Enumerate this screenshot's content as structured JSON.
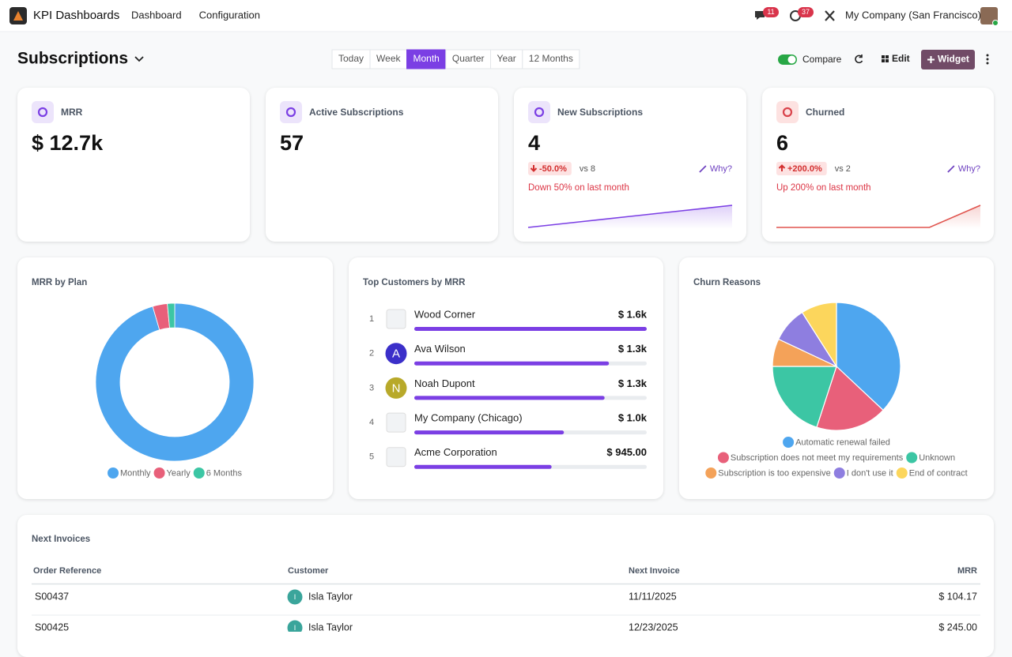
{
  "navbar": {
    "app_name": "KPI Dashboards",
    "menu": [
      "Dashboard",
      "Configuration"
    ],
    "message_count": "11",
    "activity_count": "37",
    "company": "My Company (San Francisco)"
  },
  "control_panel": {
    "title": "Subscriptions",
    "periods": [
      "Today",
      "Week",
      "Month",
      "Quarter",
      "Year",
      "12 Months"
    ],
    "active_period": 2,
    "compare": "Compare",
    "compare_on": true,
    "edit": "Edit",
    "add_widget": "Widget"
  },
  "kpis": [
    {
      "label": "MRR",
      "value": "$ 12.7k"
    },
    {
      "label": "Active Subscriptions",
      "value": "57"
    },
    {
      "label": "New Subscriptions",
      "value": "4",
      "change": "-50.0%",
      "comparison": "vs 8",
      "why": "Why?",
      "summary": "Down 50% on last month",
      "trend": [
        0,
        1,
        2,
        3,
        4
      ],
      "color": "#7b3fe4"
    },
    {
      "label": "Churned",
      "value": "6",
      "change": "+200.0%",
      "comparison": "vs 2",
      "why": "Why?",
      "summary": "Up 200% on last month",
      "trend": [
        0,
        0,
        0,
        0,
        6
      ],
      "color": "#e0554f"
    }
  ],
  "mrr_by_plan": {
    "type": "donut",
    "title": "MRR by Plan",
    "categories": [
      "Monthly",
      "Yearly",
      "6 Months"
    ],
    "values": [
      95.5,
      3,
      1.5
    ],
    "colors": [
      "#4ea6ef",
      "#e8607a",
      "#3cc6a4"
    ]
  },
  "top_customers": {
    "title": "Top Customers by MRR",
    "color": "#7b3fe4",
    "rows": [
      {
        "rank": "1",
        "name": "Wood Corner",
        "value": 1600,
        "value_label": "$ 1.6k"
      },
      {
        "rank": "2",
        "avatar": "A",
        "name": "Ava Wilson",
        "value": 1340,
        "value_label": "$ 1.3k"
      },
      {
        "rank": "3",
        "avatar": "N",
        "name": "Noah Dupont",
        "value": 1310,
        "value_label": "$ 1.3k"
      },
      {
        "rank": "4",
        "name": "My Company (Chicago)",
        "value": 1030,
        "value_label": "$ 1.0k"
      },
      {
        "rank": "5",
        "name": "Acme Corporation",
        "value": 945,
        "value_label": "$ 945.00"
      }
    ]
  },
  "churn_reasons": {
    "type": "pie",
    "title": "Churn Reasons",
    "categories": [
      "Automatic renewal failed",
      "Subscription does not meet my requirements",
      "Unknown",
      "Subscription is too expensive",
      "I don't use it",
      "End of contract"
    ],
    "values": [
      37,
      18,
      20,
      7,
      9,
      9
    ],
    "colors": [
      "#4ea6ef",
      "#e8607a",
      "#3cc6a4",
      "#f4a259",
      "#8e7ee0",
      "#fcd65c"
    ]
  },
  "next_invoices": {
    "title": "Next Invoices",
    "columns": [
      "Order Reference",
      "Customer",
      "Next Invoice",
      "MRR"
    ],
    "rows": [
      {
        "order": "S00437",
        "avatar": "I",
        "customer": "Isla Taylor",
        "date": "11/11/2025",
        "mrr": "$ 104.17"
      },
      {
        "order": "S00425",
        "avatar": "I",
        "customer": "Isla Taylor",
        "date": "12/23/2025",
        "mrr": "$ 245.00"
      }
    ]
  }
}
